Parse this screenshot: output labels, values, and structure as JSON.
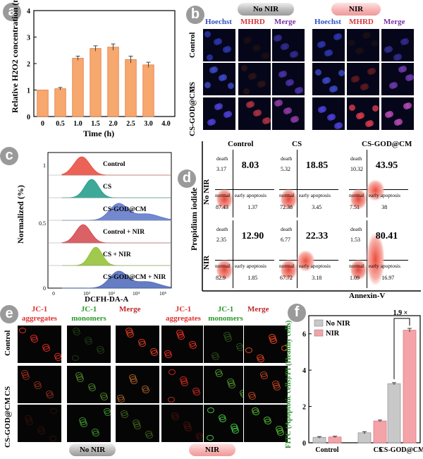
{
  "panel_labels": {
    "a": "a",
    "b": "b",
    "c": "c",
    "d": "d",
    "e": "e",
    "f": "f"
  },
  "chart_data": [
    {
      "type": "bar",
      "title": "",
      "xlabel": "Time (h)",
      "ylabel": "Relative H2O2 concentration (mM)",
      "categories": [
        "0",
        "0.5",
        "1.0",
        "1.5",
        "2.0",
        "2.5",
        "3.0",
        "4.0"
      ],
      "values": [
        1.0,
        1.05,
        2.2,
        2.57,
        2.62,
        2.15,
        1.95,
        0
      ],
      "errors": [
        0,
        0.05,
        0.08,
        0.1,
        0.12,
        0.13,
        0.1,
        0
      ],
      "ylim": [
        0,
        4
      ],
      "yticks": [
        "0",
        "1",
        "2",
        "3",
        "4"
      ],
      "color": "#f7a86e"
    },
    {
      "type": "bar",
      "title": "",
      "xlabel": "",
      "ylabel": "FITC (Apoptotic cells)/PI (Healthy cells)",
      "categories": [
        "Control",
        "CS",
        "CS-GOD@CM"
      ],
      "series": [
        {
          "name": "No NIR",
          "values": [
            0.3,
            0.55,
            3.25
          ],
          "errors": [
            0.04,
            0.06,
            0.06
          ],
          "color": "#c8c8c8"
        },
        {
          "name": "NIR",
          "values": [
            0.32,
            1.2,
            6.2
          ],
          "errors": [
            0.04,
            0.05,
            0.1
          ],
          "color": "#f4a3a8"
        }
      ],
      "ylim": [
        0,
        7
      ],
      "yticks": [
        "0",
        "2",
        "4",
        "6"
      ],
      "annotation": "1.9 ×"
    }
  ],
  "panel_b": {
    "group_no_nir": "No NIR",
    "group_nir": "NIR",
    "stains": [
      "Hoechst",
      "MHRD",
      "Merge"
    ],
    "rows": [
      "Control",
      "CS",
      "CS-GOD@CM"
    ]
  },
  "panel_c": {
    "ylabel": "Normalized (%)",
    "xlabel": "DCFH-DA-A",
    "yticks": [
      "0",
      "0.5",
      "1"
    ],
    "xticks": [
      "0",
      "10²",
      "10³",
      "10⁴",
      "10⁵"
    ],
    "curves": [
      {
        "label": "Control",
        "color": "#e8483a"
      },
      {
        "label": "CS",
        "color": "#1c9a87"
      },
      {
        "label": "CS-GOD@CM",
        "color": "#5b73c7"
      },
      {
        "label": "Control + NIR",
        "color": "#d4454b"
      },
      {
        "label": "CS + NIR",
        "color": "#8fbf2e"
      },
      {
        "label": "CS-GOD@CM + NIR",
        "color": "#4a66b8"
      }
    ]
  },
  "panel_d": {
    "ylabel": "Propidium iodide",
    "xlabel": "Annexin-V",
    "cols": [
      "Control",
      "CS",
      "CS-GOD@CM"
    ],
    "rows": [
      "No NIR",
      "NIR"
    ],
    "q_death": "death",
    "q_normal": "normal",
    "q_early": "early apoptosis",
    "cells": [
      {
        "death": "3.17",
        "late": "8.03",
        "normal": "87.43",
        "early": "1.37"
      },
      {
        "death": "5.32",
        "late": "18.85",
        "normal": "72.38",
        "early": "3.45"
      },
      {
        "death": "10.32",
        "late": "43.95",
        "normal": "7.51",
        "early": "38"
      },
      {
        "death": "2.35",
        "late": "12.90",
        "normal": "82.9",
        "early": "1.85"
      },
      {
        "death": "6.77",
        "late": "22.33",
        "normal": "67.72",
        "early": "3.18"
      },
      {
        "death": "1.53",
        "late": "80.41",
        "normal": "1.09",
        "early": "16.97"
      }
    ]
  },
  "panel_e": {
    "headers": [
      "JC-1 aggregates",
      "JC-1 monomers",
      "Merge",
      "JC-1 aggregates",
      "JC-1 monomers",
      "Merge"
    ],
    "rows": [
      "Control",
      "CS",
      "CS-GOD@CM"
    ],
    "btn_no_nir": "No NIR",
    "btn_nir": "NIR"
  }
}
